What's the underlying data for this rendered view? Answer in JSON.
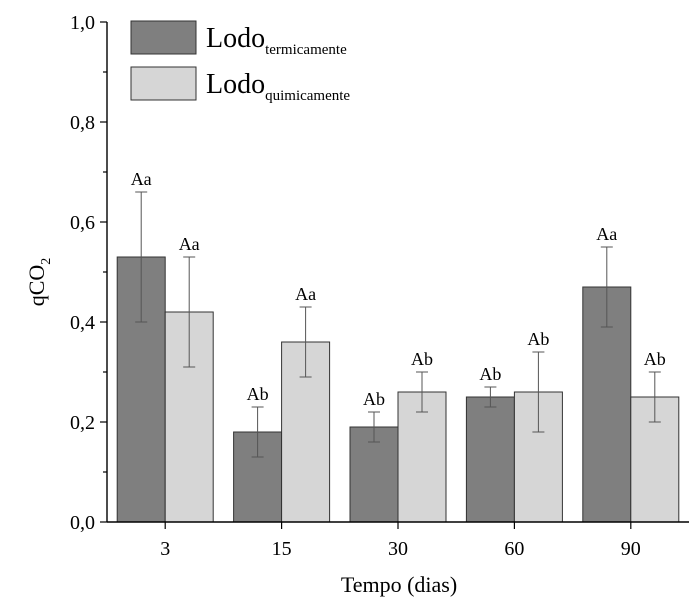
{
  "colors": {
    "series_dark": "#7f7f7f",
    "series_light": "#d6d6d6",
    "axis": "#000000",
    "error_bar": "#555555"
  },
  "chart_data": {
    "type": "bar",
    "title": "",
    "xlabel": "Tempo (dias)",
    "ylabel": "qCO",
    "ylabel_subscript": "2",
    "categories": [
      "3",
      "15",
      "30",
      "60",
      "90"
    ],
    "ylim": [
      0.0,
      1.0
    ],
    "y_ticks": [
      "0,0",
      "0,2",
      "0,4",
      "0,6",
      "0,8",
      "1,0"
    ],
    "y_tick_values": [
      0.0,
      0.2,
      0.4,
      0.6,
      0.8,
      1.0
    ],
    "grid": false,
    "legend_position": "top-left",
    "series": [
      {
        "name": "Lodo",
        "name_subscript": "termicamente",
        "color": "#7f7f7f",
        "values": [
          0.53,
          0.18,
          0.19,
          0.25,
          0.47
        ],
        "error_low": [
          0.4,
          0.13,
          0.16,
          0.23,
          0.39
        ],
        "error_high": [
          0.66,
          0.23,
          0.22,
          0.27,
          0.55
        ],
        "labels": [
          "Aa",
          "Ab",
          "Ab",
          "Ab",
          "Aa"
        ]
      },
      {
        "name": "Lodo",
        "name_subscript": "quimicamente",
        "color": "#d6d6d6",
        "values": [
          0.42,
          0.36,
          0.26,
          0.26,
          0.25
        ],
        "error_low": [
          0.31,
          0.29,
          0.22,
          0.18,
          0.2
        ],
        "error_high": [
          0.53,
          0.43,
          0.3,
          0.34,
          0.3
        ],
        "labels": [
          "Aa",
          "Aa",
          "Ab",
          "Ab",
          "Ab"
        ]
      }
    ]
  }
}
